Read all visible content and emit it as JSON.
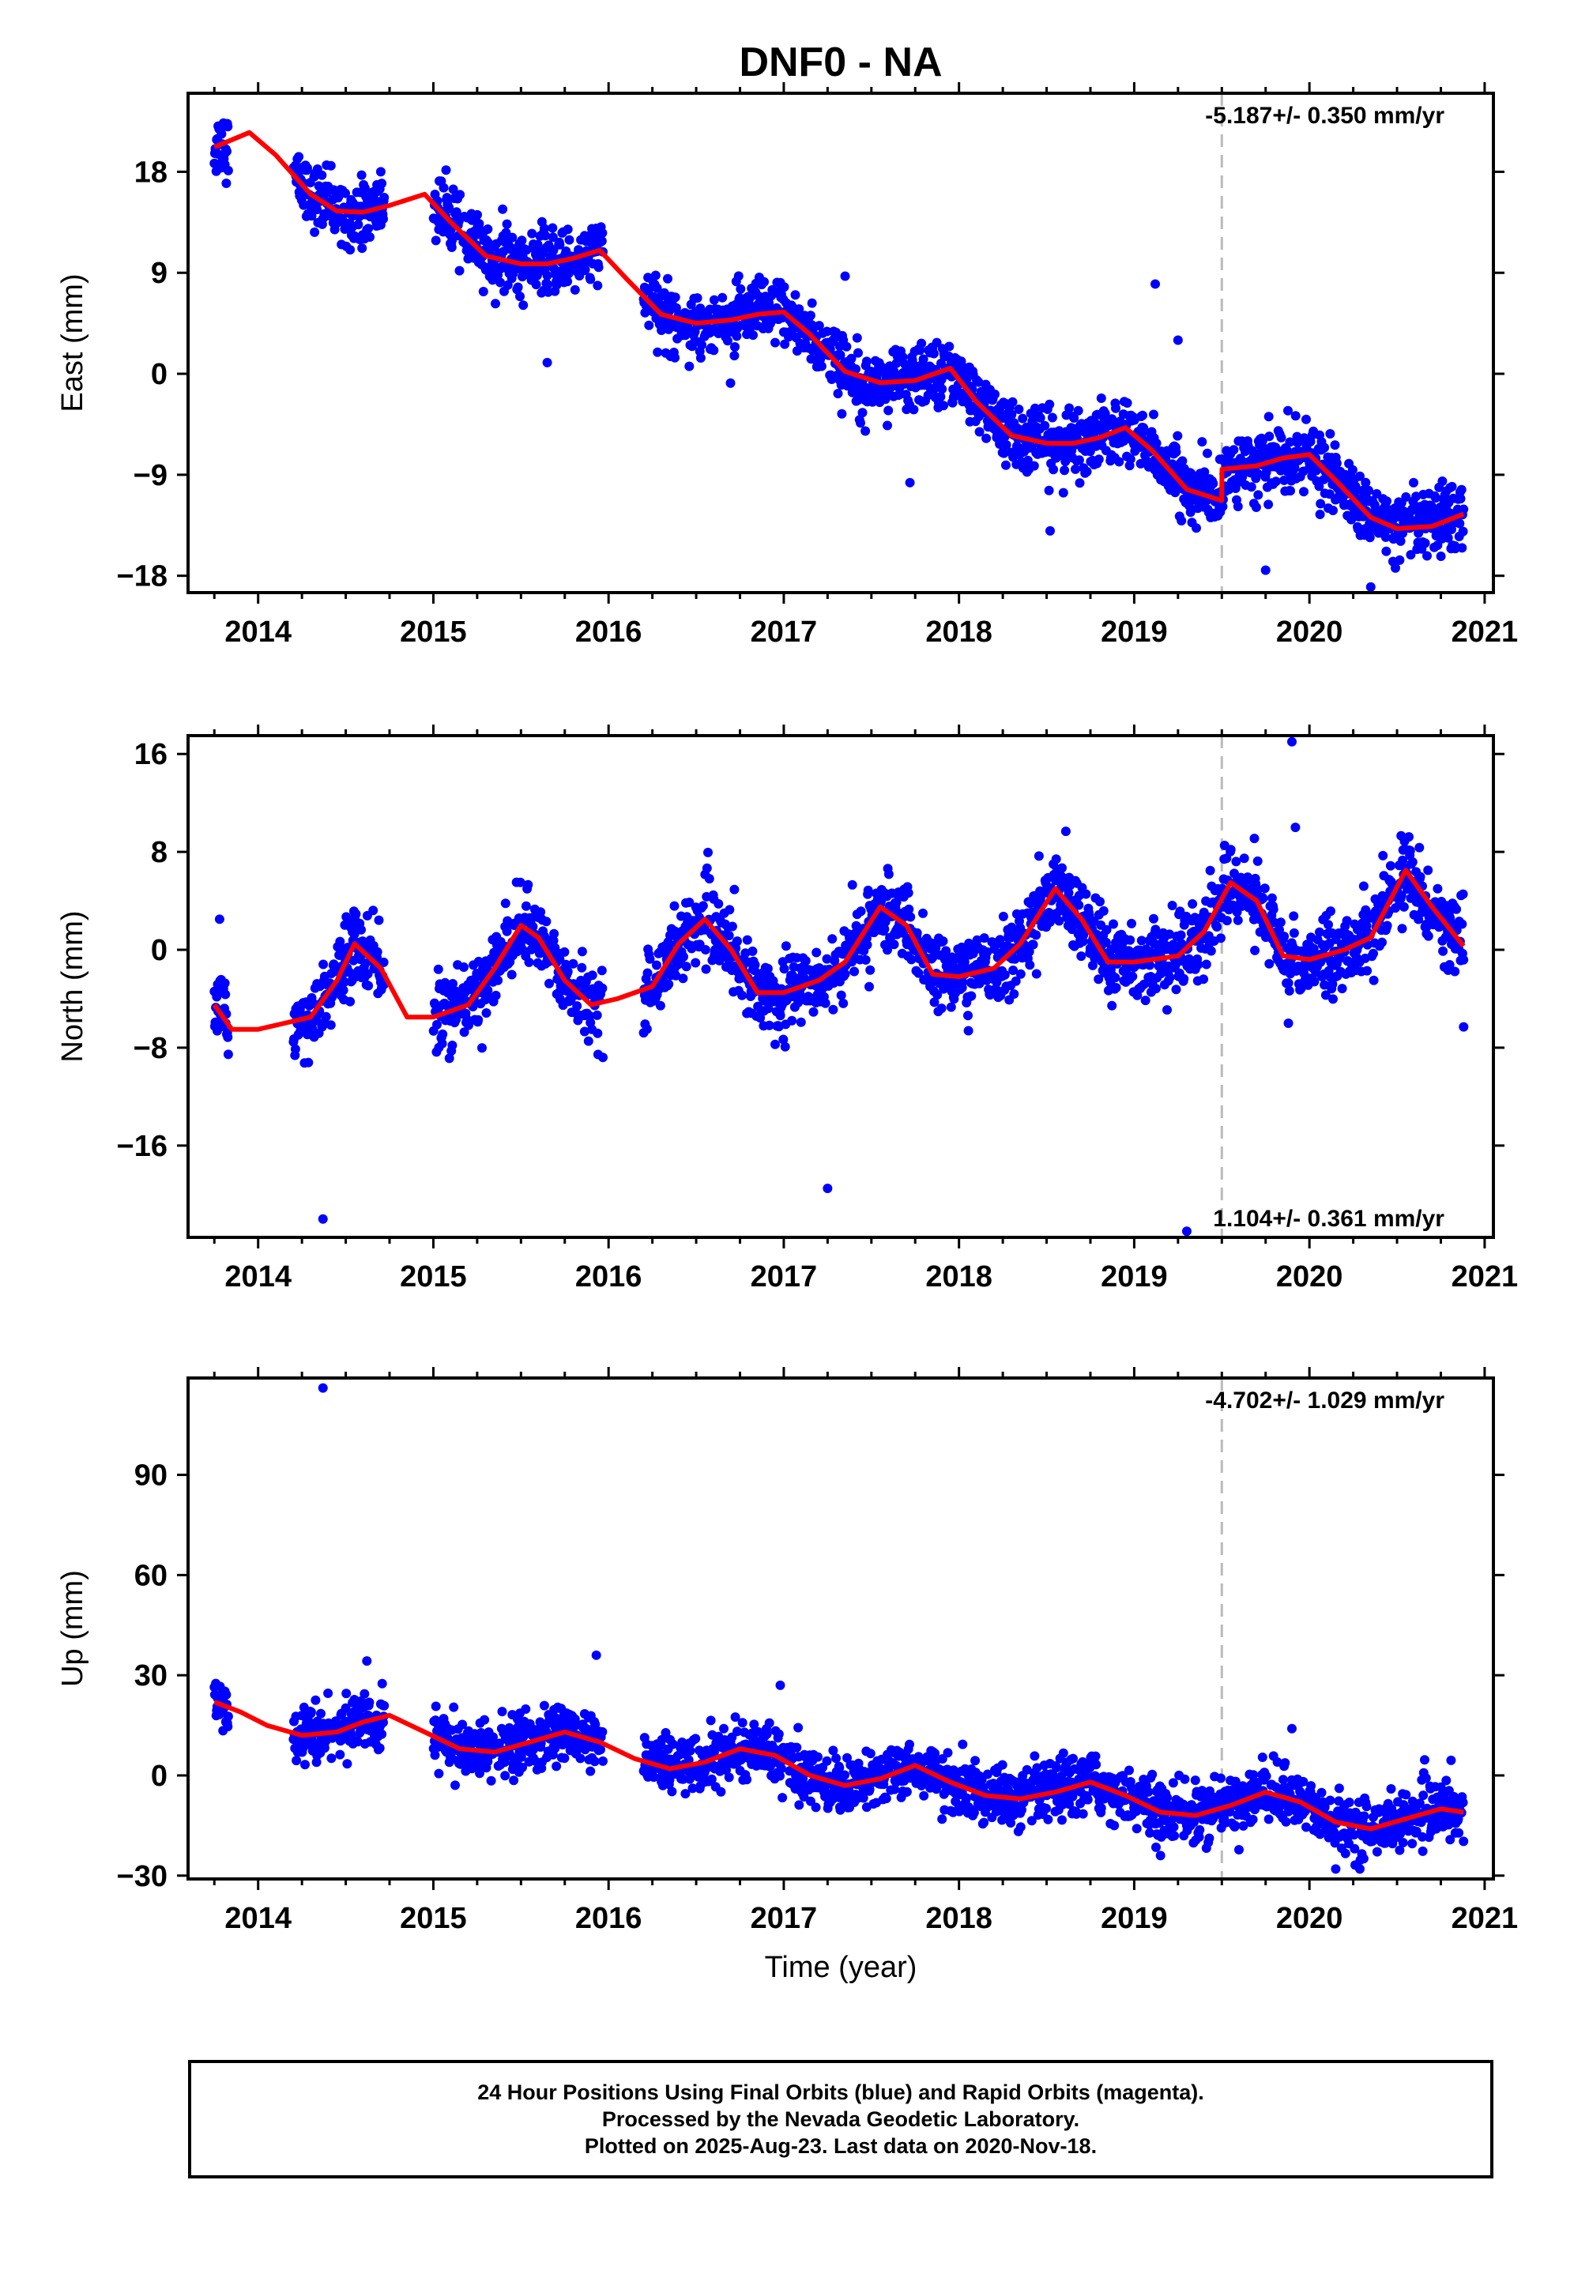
{
  "title": "DNF0 - NA",
  "xlabel": "Time (year)",
  "colors": {
    "points": "#0000ff",
    "model": "#ff0000",
    "event_line": "#bbbbbb",
    "axes": "#000000"
  },
  "footer": {
    "line1": "24 Hour Positions Using Final Orbits (blue) and Rapid Orbits (magenta).",
    "line2": "Processed by the Nevada Geodetic Laboratory.",
    "line3": "Plotted on 2025-Aug-23. Last data on 2020-Nov-18."
  },
  "chart_data": [
    {
      "type": "scatter",
      "panel": "east",
      "ylabel": "East (mm)",
      "rate_text": "-5.187+/- 0.350 mm/yr",
      "rate_position": "top-right",
      "xlim": [
        2013.6,
        2021.05
      ],
      "ylim": [
        -19.5,
        25
      ],
      "xticks": [
        2014,
        2015,
        2016,
        2017,
        2018,
        2019,
        2020,
        2021
      ],
      "yticks": [
        18,
        9,
        0,
        -9,
        -18
      ],
      "ytick_labels": [
        "18",
        "9",
        "0",
        "−9",
        "−18"
      ],
      "event_line_x": 2019.5,
      "model": {
        "x": [
          2013.75,
          2013.95,
          2014.1,
          2014.3,
          2014.45,
          2014.6,
          2014.75,
          2014.95,
          2015.1,
          2015.3,
          2015.5,
          2015.65,
          2015.8,
          2015.95,
          2016.1,
          2016.3,
          2016.5,
          2016.7,
          2016.85,
          2017.0,
          2017.15,
          2017.35,
          2017.55,
          2017.75,
          2017.95,
          2018.1,
          2018.3,
          2018.5,
          2018.65,
          2018.8,
          2018.95,
          2019.1,
          2019.3,
          2019.499,
          2019.501,
          2019.7,
          2019.85,
          2020.0,
          2020.15,
          2020.35,
          2020.5,
          2020.7,
          2020.88
        ],
        "y": [
          20.2,
          21.5,
          19.5,
          16,
          14.5,
          14.4,
          15,
          16,
          13.5,
          10.5,
          9.8,
          9.8,
          10.3,
          11,
          8.5,
          5.3,
          4.5,
          4.8,
          5.3,
          5.5,
          3.5,
          0.2,
          -0.8,
          -0.6,
          0.5,
          -2.5,
          -5.5,
          -6.2,
          -6.2,
          -5.7,
          -4.8,
          -6.8,
          -10.3,
          -11.3,
          -8.5,
          -8.2,
          -7.5,
          -7.2,
          -9.5,
          -12.8,
          -13.8,
          -13.6,
          -12.5
        ]
      },
      "points": {
        "sampling": "daily 2013.75–2020.88",
        "gaps": [
          [
            2013.83,
            2014.2
          ],
          [
            2014.72,
            2015.0
          ],
          [
            2015.97,
            2016.2
          ]
        ],
        "scatter_mm": 1.4,
        "outliers": [
          [
            2014.7,
            18
          ],
          [
            2015.65,
            1
          ],
          [
            2017.35,
            8.7
          ],
          [
            2017.72,
            -9.7
          ],
          [
            2018.52,
            -14
          ],
          [
            2019.12,
            8
          ],
          [
            2019.25,
            3
          ],
          [
            2019.75,
            -17.5
          ],
          [
            2020.35,
            -19
          ],
          [
            2020.78,
            -12
          ]
        ]
      }
    },
    {
      "type": "scatter",
      "panel": "north",
      "ylabel": "North (mm)",
      "rate_text": "1.104+/- 0.361 mm/yr",
      "rate_position": "bottom-right",
      "xlim": [
        2013.6,
        2021.05
      ],
      "ylim": [
        -23.5,
        17.5
      ],
      "xticks": [
        2014,
        2015,
        2016,
        2017,
        2018,
        2019,
        2020,
        2021
      ],
      "yticks": [
        16,
        8,
        0,
        -8,
        -16
      ],
      "ytick_labels": [
        "16",
        "8",
        "0",
        "−8",
        "−16"
      ],
      "event_line_x": 2019.5,
      "model": {
        "x": [
          2013.75,
          2013.85,
          2014.0,
          2014.15,
          2014.3,
          2014.45,
          2014.55,
          2014.7,
          2014.85,
          2015.0,
          2015.2,
          2015.35,
          2015.5,
          2015.6,
          2015.75,
          2015.9,
          2016.05,
          2016.25,
          2016.4,
          2016.55,
          2016.7,
          2016.85,
          2017.0,
          2017.2,
          2017.35,
          2017.55,
          2017.7,
          2017.85,
          2018.0,
          2018.2,
          2018.35,
          2018.55,
          2018.7,
          2018.85,
          2019.0,
          2019.25,
          2019.4,
          2019.55,
          2019.7,
          2019.85,
          2020.0,
          2020.2,
          2020.35,
          2020.55,
          2020.7,
          2020.88
        ],
        "y": [
          -4.5,
          -6.5,
          -6.5,
          -6.0,
          -5.5,
          -2.5,
          0.5,
          -1.5,
          -5.5,
          -5.5,
          -4.5,
          -1.5,
          2.0,
          1.0,
          -2.5,
          -4.5,
          -4.0,
          -3.0,
          0.5,
          2.5,
          0.0,
          -3.5,
          -3.5,
          -2.5,
          -1.0,
          3.5,
          2.0,
          -2.0,
          -2.2,
          -1.5,
          0.5,
          5.0,
          2.5,
          -1.0,
          -1.0,
          -0.5,
          1.5,
          5.5,
          4.0,
          -0.5,
          -0.8,
          0.0,
          1.0,
          6.5,
          3.5,
          0.3
        ]
      },
      "points": {
        "sampling": "daily 2013.75–2020.88",
        "gaps": [
          [
            2013.83,
            2014.2
          ],
          [
            2014.72,
            2015.0
          ],
          [
            2015.97,
            2016.2
          ]
        ],
        "scatter_mm": 1.5,
        "outliers": [
          [
            2013.78,
            2.5
          ],
          [
            2014.37,
            -22
          ],
          [
            2017.25,
            -19.5
          ],
          [
            2019.3,
            -23
          ],
          [
            2019.9,
            17
          ],
          [
            2019.92,
            10
          ],
          [
            2019.88,
            -6
          ],
          [
            2020.88,
            -6.3
          ]
        ]
      }
    },
    {
      "type": "scatter",
      "panel": "up",
      "ylabel": "Up (mm)",
      "rate_text": "-4.702+/- 1.029 mm/yr",
      "rate_position": "top-right",
      "xlim": [
        2013.6,
        2021.05
      ],
      "ylim": [
        -31,
        119
      ],
      "xticks": [
        2014,
        2015,
        2016,
        2017,
        2018,
        2019,
        2020,
        2021
      ],
      "yticks": [
        90,
        60,
        30,
        0,
        -30
      ],
      "ytick_labels": [
        "90",
        "60",
        "30",
        "0",
        "−30"
      ],
      "event_line_x": 2019.5,
      "model": {
        "x": [
          2013.75,
          2013.9,
          2014.05,
          2014.25,
          2014.45,
          2014.6,
          2014.75,
          2014.95,
          2015.15,
          2015.35,
          2015.55,
          2015.75,
          2015.95,
          2016.15,
          2016.35,
          2016.55,
          2016.75,
          2016.95,
          2017.15,
          2017.35,
          2017.55,
          2017.75,
          2017.95,
          2018.15,
          2018.35,
          2018.55,
          2018.75,
          2018.95,
          2019.15,
          2019.35,
          2019.55,
          2019.75,
          2019.95,
          2020.15,
          2020.35,
          2020.55,
          2020.75,
          2020.88
        ],
        "y": [
          22,
          19,
          15,
          12,
          13,
          16,
          18,
          13,
          8,
          7,
          10,
          13,
          10,
          5,
          2,
          4,
          8,
          6,
          0,
          -3,
          -1,
          3,
          -2,
          -6,
          -7,
          -5,
          -2,
          -6,
          -11,
          -12,
          -9,
          -5,
          -8,
          -14,
          -16,
          -13,
          -10,
          -11
        ]
      },
      "points": {
        "sampling": "daily 2013.75–2020.88",
        "gaps": [
          [
            2013.83,
            2014.2
          ],
          [
            2014.72,
            2015.0
          ],
          [
            2015.97,
            2016.2
          ]
        ],
        "scatter_mm": 4.2,
        "outliers": [
          [
            2014.37,
            116
          ],
          [
            2015.93,
            36
          ],
          [
            2016.98,
            27
          ],
          [
            2019.9,
            14
          ],
          [
            2020.15,
            -28
          ],
          [
            2019.15,
            -24
          ]
        ]
      }
    }
  ]
}
